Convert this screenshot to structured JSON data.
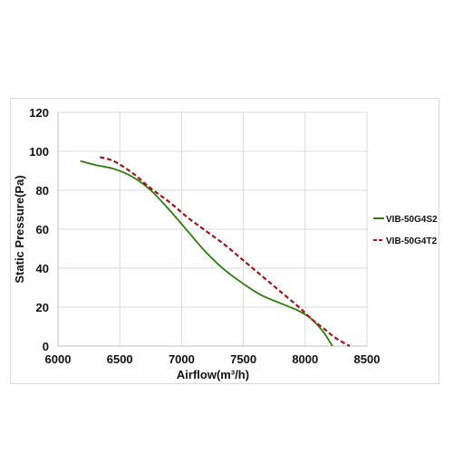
{
  "chart_data": {
    "type": "line",
    "xlabel": "Airflow(m³/h)",
    "ylabel": "Static Pressure(Pa)",
    "xlim": [
      6000,
      8500
    ],
    "ylim": [
      0,
      120
    ],
    "x_ticks": [
      "6000",
      "6500",
      "7000",
      "7500",
      "8000",
      "8500"
    ],
    "y_ticks": [
      "0",
      "20",
      "40",
      "60",
      "80",
      "100",
      "120"
    ],
    "grid": true,
    "legend_position": "right",
    "series": [
      {
        "name": "VIB-50G4S2",
        "color": "#2e7d0e",
        "style": "solid",
        "points": [
          [
            6180,
            95
          ],
          [
            6300,
            93
          ],
          [
            6450,
            91
          ],
          [
            6600,
            87
          ],
          [
            6750,
            80
          ],
          [
            6900,
            70
          ],
          [
            7050,
            59
          ],
          [
            7200,
            48
          ],
          [
            7350,
            39
          ],
          [
            7500,
            32
          ],
          [
            7650,
            26
          ],
          [
            7800,
            22
          ],
          [
            7950,
            18
          ],
          [
            8050,
            14
          ],
          [
            8150,
            7
          ],
          [
            8220,
            0
          ]
        ]
      },
      {
        "name": "VIB-50G4T2",
        "color": "#a31515",
        "style": "dashed",
        "points": [
          [
            6340,
            97
          ],
          [
            6450,
            95
          ],
          [
            6600,
            89
          ],
          [
            6750,
            81
          ],
          [
            6900,
            74
          ],
          [
            7050,
            66
          ],
          [
            7200,
            59
          ],
          [
            7350,
            52
          ],
          [
            7500,
            44
          ],
          [
            7650,
            36
          ],
          [
            7800,
            28
          ],
          [
            7950,
            20
          ],
          [
            8050,
            14
          ],
          [
            8150,
            9
          ],
          [
            8250,
            4
          ],
          [
            8360,
            0
          ]
        ]
      }
    ]
  }
}
